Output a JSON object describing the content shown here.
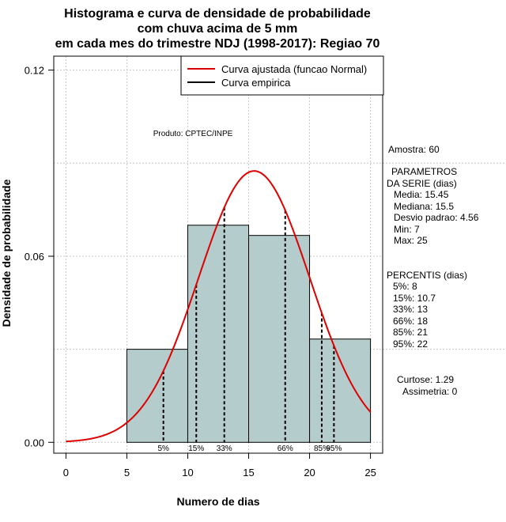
{
  "chart_data": {
    "type": "histogram",
    "title_lines": [
      "Histograma e curva de densidade de probabilidade",
      "com chuva acima de 5 mm",
      "em cada mes do trimestre NDJ (1998-2017): Regiao 70"
    ],
    "xlabel": "Numero de dias",
    "ylabel": "Densidade de probabilidade",
    "xlim": [
      -1,
      26
    ],
    "ylim": [
      -0.0035,
      0.1245
    ],
    "x_ticks": [
      "0",
      "5",
      "10",
      "15",
      "20",
      "25"
    ],
    "y_ticks": [
      "0.00",
      "0.06",
      "0.12"
    ],
    "grid": true,
    "bars": [
      {
        "x0": 5,
        "x1": 10,
        "density": 0.03
      },
      {
        "x0": 10,
        "x1": 15,
        "density": 0.07
      },
      {
        "x0": 15,
        "x1": 20,
        "density": 0.0667
      },
      {
        "x0": 20,
        "x1": 25,
        "density": 0.0333
      }
    ],
    "normal_curve": {
      "mean": 15.45,
      "sd": 4.56,
      "x_from": 0,
      "x_to": 25
    },
    "percentile_lines": [
      {
        "label": "5%",
        "value": 8
      },
      {
        "label": "15%",
        "value": 10.7
      },
      {
        "label": "33%",
        "value": 13
      },
      {
        "label": "66%",
        "value": 18
      },
      {
        "label": "85%",
        "value": 21
      },
      {
        "label": "95%",
        "value": 22
      }
    ],
    "legend": {
      "position": "top-right",
      "entries": [
        {
          "label": "Curva ajustada (funcao Normal)",
          "color": "#dd0000"
        },
        {
          "label": "Curva empirica",
          "color": "#000000"
        }
      ]
    },
    "annotation": "Produto: CPTEC/INPE",
    "colors": {
      "bar_fill": "#b5cccc",
      "curve": "#dd0000",
      "grid": "#c8c8c8"
    }
  },
  "stats": {
    "sample": "Amostra: 60",
    "params_lines": [
      "PARAMETROS",
      "DA SERIE (dias)",
      "Media: 15.45",
      "Mediana: 15.5",
      "Desvio padrao: 4.56",
      "Min: 7",
      "Max: 25"
    ],
    "percentis_lines": [
      "PERCENTIS (dias)",
      "5%: 8",
      "15%: 10.7",
      "33%: 13",
      "66%: 18",
      "85%: 21",
      "95%: 22"
    ],
    "shape_lines": [
      "Curtose: 1.29",
      "Assimetria: 0"
    ]
  }
}
